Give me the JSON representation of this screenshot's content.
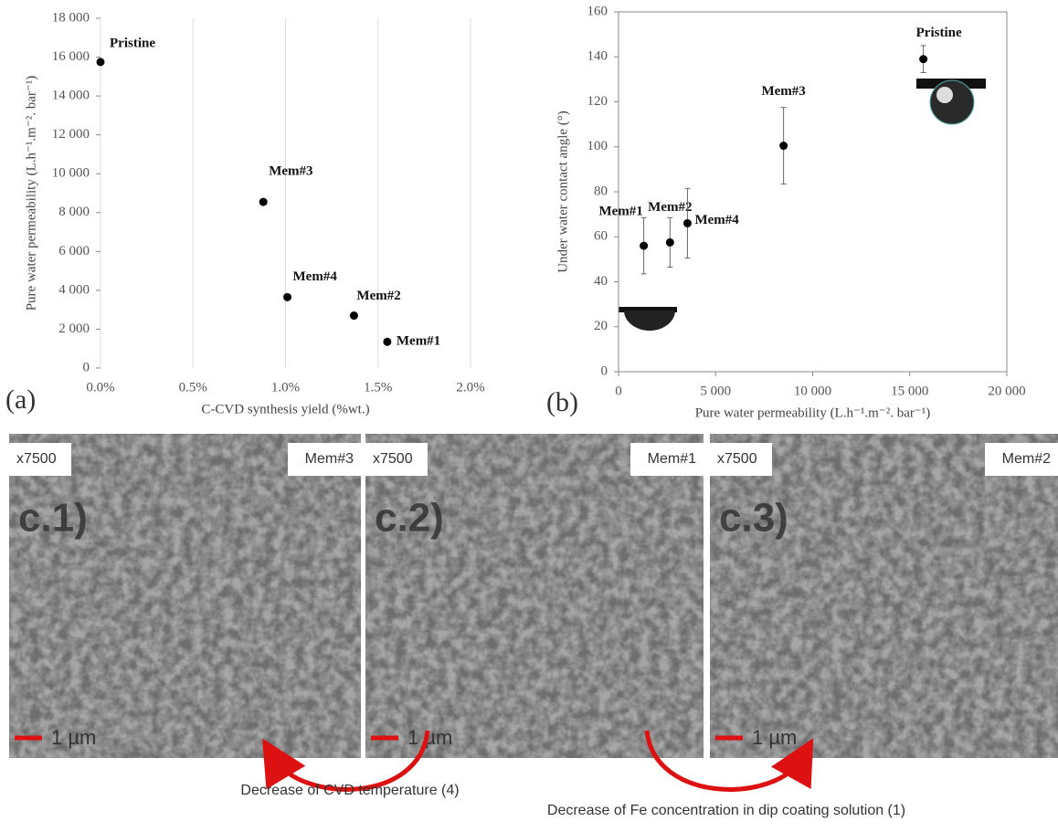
{
  "chart_data": [
    {
      "type": "scatter",
      "xlabel": "C-CVD synthesis yield (%wt.)",
      "ylabel": "Pure water permeability (L.h⁻¹.m⁻². bar⁻¹)",
      "xlim": [
        0,
        2
      ],
      "ylim": [
        0,
        18000
      ],
      "xticks": [
        {
          "value": 0,
          "label": "0.0%"
        },
        {
          "value": 0.5,
          "label": "0.5%"
        },
        {
          "value": 1,
          "label": "1.0%"
        },
        {
          "value": 1.5,
          "label": "1.5%"
        },
        {
          "value": 2,
          "label": "2.0%"
        }
      ],
      "yticks": [
        0,
        {
          "value": 2000,
          "label": "2 000"
        },
        {
          "value": 4000,
          "label": "4 000"
        },
        {
          "value": 6000,
          "label": "6 000"
        },
        {
          "value": 8000,
          "label": "8 000"
        },
        {
          "value": 10000,
          "label": "10 000"
        },
        {
          "value": 12000,
          "label": "12 000"
        },
        {
          "value": 14000,
          "label": "14 000"
        },
        {
          "value": 16000,
          "label": "16 000"
        },
        {
          "value": 18000,
          "label": "18 000"
        }
      ],
      "grid": true,
      "color": "#000000",
      "point_labels": [
        "Pristine",
        "Mem#3",
        "Mem#4",
        "Mem#2",
        "Mem#1"
      ],
      "x": [
        0,
        0.88,
        1.01,
        1.37,
        1.55
      ],
      "values": [
        15750,
        8550,
        3650,
        2700,
        1350
      ]
    },
    {
      "type": "scatter",
      "xlabel": "Pure water permeability  (L.h⁻¹.m⁻². bar⁻¹)",
      "ylabel": "Under water contact angle (°)",
      "xlim": [
        0,
        20000
      ],
      "ylim": [
        0,
        160
      ],
      "xticks": [
        0,
        {
          "value": 5000,
          "label": "5 000"
        },
        {
          "value": 10000,
          "label": "10 000"
        },
        {
          "value": 15000,
          "label": "15 000"
        },
        {
          "value": 20000,
          "label": "20 000"
        }
      ],
      "yticks": [
        0,
        20,
        40,
        60,
        80,
        100,
        120,
        140,
        160
      ],
      "grid": false,
      "color": "#000000",
      "point_labels": [
        "Mem#1",
        "Mem#2",
        "Mem#4",
        "Mem#3",
        "Pristine"
      ],
      "x": [
        1300,
        2650,
        3550,
        8500,
        15700
      ],
      "values": [
        56,
        57.5,
        66,
        100.5,
        139
      ],
      "errors": [
        12.5,
        11,
        15.5,
        17,
        6
      ]
    }
  ],
  "panel_labels": [
    "(a)",
    "(b)"
  ],
  "sem_images": [
    {
      "magnification": "x7500",
      "sample": "Mem#3",
      "label": "c.1)",
      "scale": "1 µm"
    },
    {
      "magnification": "x7500",
      "sample": "Mem#1",
      "label": "c.2)",
      "scale": "1 µm"
    },
    {
      "magnification": "x7500",
      "sample": "Mem#2",
      "label": "c.3)",
      "scale": "1 µm"
    }
  ],
  "captions": [
    "Decrease of CVD temperature (4)",
    "Decrease of Fe concentration in dip coating solution (1)"
  ]
}
